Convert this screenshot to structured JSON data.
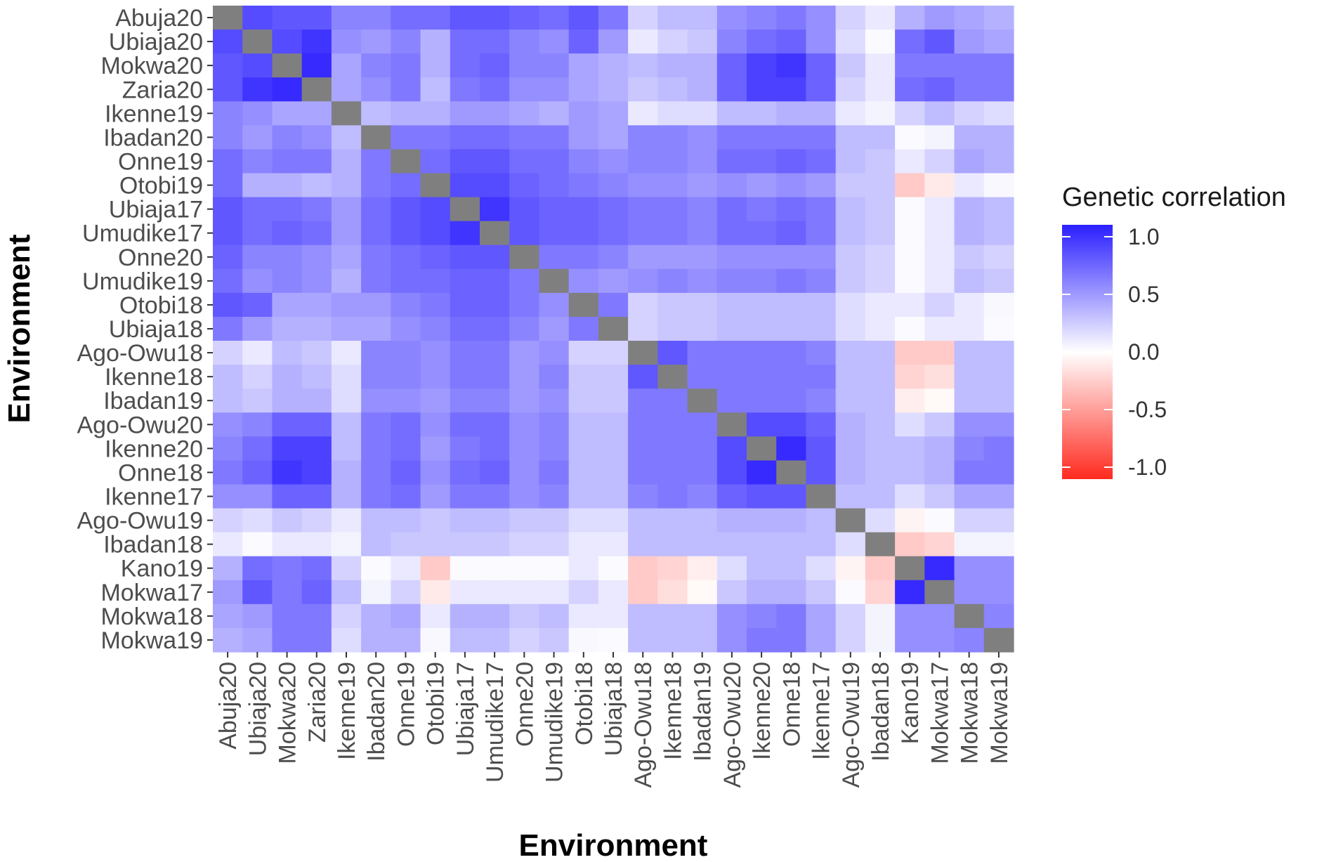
{
  "chart_data": {
    "type": "heatmap",
    "title": "",
    "xlabel": "Environment",
    "ylabel": "Environment",
    "categories": [
      "Abuja20",
      "Ubiaja20",
      "Mokwa20",
      "Zaria20",
      "Ikenne19",
      "Ibadan20",
      "Onne19",
      "Otobi19",
      "Ubiaja17",
      "Umudike17",
      "Onne20",
      "Umudike19",
      "Otobi18",
      "Ubiaja18",
      "Ago-Owu18",
      "Ikenne18",
      "Ibadan19",
      "Ago-Owu20",
      "Ikenne20",
      "Onne18",
      "Ikenne17",
      "Ago-Owu19",
      "Ibadan18",
      "Kano19",
      "Mokwa17",
      "Mokwa18",
      "Mokwa19"
    ],
    "values": [
      [
        null,
        0.8,
        0.75,
        0.75,
        0.55,
        0.55,
        0.65,
        0.65,
        0.75,
        0.75,
        0.7,
        0.65,
        0.75,
        0.6,
        0.2,
        0.3,
        0.3,
        0.5,
        0.55,
        0.6,
        0.5,
        0.2,
        0.1,
        0.35,
        0.45,
        0.4,
        0.35
      ],
      [
        0.8,
        null,
        0.8,
        0.9,
        0.5,
        0.45,
        0.55,
        0.35,
        0.65,
        0.65,
        0.55,
        0.5,
        0.7,
        0.45,
        0.1,
        0.2,
        0.25,
        0.55,
        0.65,
        0.7,
        0.5,
        0.15,
        0.02,
        0.65,
        0.75,
        0.45,
        0.4
      ],
      [
        0.75,
        0.8,
        null,
        0.95,
        0.4,
        0.55,
        0.6,
        0.35,
        0.65,
        0.7,
        0.55,
        0.55,
        0.4,
        0.35,
        0.3,
        0.35,
        0.35,
        0.7,
        0.85,
        0.9,
        0.7,
        0.25,
        0.1,
        0.6,
        0.6,
        0.6,
        0.6
      ],
      [
        0.75,
        0.9,
        0.95,
        null,
        0.4,
        0.5,
        0.6,
        0.3,
        0.6,
        0.65,
        0.5,
        0.5,
        0.4,
        0.35,
        0.25,
        0.3,
        0.35,
        0.7,
        0.85,
        0.85,
        0.7,
        0.2,
        0.1,
        0.65,
        0.7,
        0.6,
        0.6
      ],
      [
        0.55,
        0.5,
        0.4,
        0.4,
        null,
        0.3,
        0.35,
        0.35,
        0.45,
        0.45,
        0.4,
        0.35,
        0.45,
        0.4,
        0.1,
        0.15,
        0.15,
        0.3,
        0.3,
        0.35,
        0.35,
        0.1,
        0.05,
        0.2,
        0.3,
        0.2,
        0.15
      ],
      [
        0.55,
        0.45,
        0.55,
        0.5,
        0.3,
        null,
        0.6,
        0.6,
        0.65,
        0.65,
        0.6,
        0.6,
        0.45,
        0.4,
        0.55,
        0.55,
        0.5,
        0.6,
        0.6,
        0.6,
        0.6,
        0.3,
        0.3,
        0.02,
        0.05,
        0.35,
        0.35
      ],
      [
        0.65,
        0.55,
        0.6,
        0.6,
        0.35,
        0.6,
        null,
        0.65,
        0.75,
        0.75,
        0.65,
        0.65,
        0.55,
        0.5,
        0.55,
        0.55,
        0.5,
        0.65,
        0.65,
        0.7,
        0.65,
        0.3,
        0.25,
        0.1,
        0.2,
        0.4,
        0.35
      ],
      [
        0.65,
        0.35,
        0.35,
        0.3,
        0.35,
        0.6,
        0.65,
        null,
        0.8,
        0.8,
        0.7,
        0.65,
        0.6,
        0.55,
        0.5,
        0.5,
        0.45,
        0.5,
        0.45,
        0.5,
        0.45,
        0.25,
        0.25,
        -0.25,
        -0.1,
        0.1,
        0.03
      ],
      [
        0.75,
        0.65,
        0.65,
        0.6,
        0.45,
        0.65,
        0.75,
        0.8,
        null,
        0.9,
        0.75,
        0.7,
        0.7,
        0.65,
        0.6,
        0.6,
        0.55,
        0.65,
        0.6,
        0.65,
        0.6,
        0.3,
        0.25,
        0.02,
        0.1,
        0.35,
        0.3
      ],
      [
        0.75,
        0.65,
        0.7,
        0.65,
        0.45,
        0.65,
        0.75,
        0.8,
        0.9,
        null,
        0.75,
        0.7,
        0.7,
        0.65,
        0.6,
        0.6,
        0.55,
        0.65,
        0.65,
        0.7,
        0.6,
        0.3,
        0.25,
        0.02,
        0.1,
        0.35,
        0.3
      ],
      [
        0.7,
        0.55,
        0.55,
        0.5,
        0.4,
        0.6,
        0.65,
        0.7,
        0.75,
        0.75,
        null,
        0.6,
        0.6,
        0.55,
        0.45,
        0.45,
        0.45,
        0.5,
        0.5,
        0.5,
        0.5,
        0.25,
        0.2,
        0.02,
        0.1,
        0.25,
        0.2
      ],
      [
        0.65,
        0.5,
        0.55,
        0.5,
        0.35,
        0.6,
        0.65,
        0.65,
        0.7,
        0.7,
        0.6,
        null,
        0.5,
        0.45,
        0.5,
        0.55,
        0.5,
        0.55,
        0.55,
        0.6,
        0.55,
        0.25,
        0.2,
        0.02,
        0.1,
        0.3,
        0.25
      ],
      [
        0.75,
        0.7,
        0.4,
        0.4,
        0.45,
        0.45,
        0.55,
        0.6,
        0.7,
        0.7,
        0.6,
        0.5,
        null,
        0.6,
        0.2,
        0.25,
        0.25,
        0.3,
        0.3,
        0.3,
        0.3,
        0.15,
        0.1,
        0.1,
        0.2,
        0.1,
        0.03
      ],
      [
        0.6,
        0.45,
        0.35,
        0.35,
        0.4,
        0.4,
        0.5,
        0.55,
        0.65,
        0.65,
        0.55,
        0.45,
        0.6,
        null,
        0.2,
        0.25,
        0.25,
        0.3,
        0.3,
        0.3,
        0.3,
        0.15,
        0.1,
        0.02,
        0.1,
        0.1,
        0.02
      ],
      [
        0.2,
        0.1,
        0.3,
        0.25,
        0.1,
        0.55,
        0.55,
        0.5,
        0.6,
        0.6,
        0.45,
        0.5,
        0.2,
        0.2,
        null,
        0.75,
        0.6,
        0.6,
        0.6,
        0.6,
        0.55,
        0.3,
        0.3,
        -0.25,
        -0.25,
        0.3,
        0.3
      ],
      [
        0.3,
        0.2,
        0.35,
        0.3,
        0.15,
        0.55,
        0.55,
        0.5,
        0.6,
        0.6,
        0.45,
        0.55,
        0.25,
        0.25,
        0.75,
        null,
        0.6,
        0.6,
        0.6,
        0.6,
        0.6,
        0.3,
        0.3,
        -0.2,
        -0.15,
        0.3,
        0.3
      ],
      [
        0.3,
        0.25,
        0.35,
        0.35,
        0.15,
        0.5,
        0.5,
        0.45,
        0.55,
        0.55,
        0.45,
        0.5,
        0.25,
        0.25,
        0.6,
        0.6,
        null,
        0.6,
        0.6,
        0.6,
        0.55,
        0.3,
        0.3,
        -0.08,
        -0.03,
        0.3,
        0.3
      ],
      [
        0.5,
        0.55,
        0.7,
        0.7,
        0.3,
        0.6,
        0.65,
        0.5,
        0.65,
        0.65,
        0.5,
        0.55,
        0.3,
        0.3,
        0.6,
        0.6,
        0.6,
        null,
        0.8,
        0.8,
        0.7,
        0.35,
        0.3,
        0.15,
        0.25,
        0.5,
        0.5
      ],
      [
        0.55,
        0.65,
        0.85,
        0.85,
        0.3,
        0.6,
        0.65,
        0.45,
        0.6,
        0.65,
        0.5,
        0.55,
        0.3,
        0.3,
        0.6,
        0.6,
        0.6,
        0.8,
        null,
        0.95,
        0.75,
        0.35,
        0.3,
        0.3,
        0.35,
        0.55,
        0.6
      ],
      [
        0.6,
        0.7,
        0.9,
        0.85,
        0.35,
        0.6,
        0.7,
        0.5,
        0.65,
        0.7,
        0.5,
        0.6,
        0.3,
        0.3,
        0.6,
        0.6,
        0.6,
        0.8,
        0.95,
        null,
        0.75,
        0.35,
        0.3,
        0.3,
        0.35,
        0.6,
        0.6
      ],
      [
        0.5,
        0.5,
        0.7,
        0.7,
        0.35,
        0.6,
        0.65,
        0.45,
        0.6,
        0.6,
        0.5,
        0.55,
        0.3,
        0.3,
        0.55,
        0.6,
        0.55,
        0.7,
        0.75,
        0.75,
        null,
        0.3,
        0.3,
        0.15,
        0.25,
        0.4,
        0.4
      ],
      [
        0.2,
        0.15,
        0.25,
        0.2,
        0.1,
        0.3,
        0.3,
        0.25,
        0.3,
        0.3,
        0.25,
        0.25,
        0.15,
        0.15,
        0.3,
        0.3,
        0.3,
        0.35,
        0.35,
        0.35,
        0.3,
        null,
        0.15,
        -0.05,
        0.02,
        0.2,
        0.2
      ],
      [
        0.1,
        0.02,
        0.1,
        0.1,
        0.05,
        0.3,
        0.25,
        0.25,
        0.25,
        0.25,
        0.2,
        0.2,
        0.1,
        0.1,
        0.3,
        0.3,
        0.3,
        0.3,
        0.3,
        0.3,
        0.3,
        0.15,
        null,
        -0.25,
        -0.2,
        0.05,
        0.05
      ],
      [
        0.35,
        0.65,
        0.6,
        0.65,
        0.2,
        0.02,
        0.1,
        -0.25,
        0.02,
        0.02,
        0.02,
        0.02,
        0.1,
        0.02,
        -0.25,
        -0.2,
        -0.08,
        0.15,
        0.3,
        0.3,
        0.15,
        -0.05,
        -0.25,
        null,
        0.95,
        0.5,
        0.5
      ],
      [
        0.45,
        0.75,
        0.6,
        0.7,
        0.3,
        0.05,
        0.2,
        -0.1,
        0.1,
        0.1,
        0.1,
        0.1,
        0.2,
        0.1,
        -0.25,
        -0.15,
        -0.03,
        0.25,
        0.35,
        0.35,
        0.25,
        0.02,
        -0.2,
        0.95,
        null,
        0.5,
        0.5
      ],
      [
        0.4,
        0.45,
        0.6,
        0.6,
        0.2,
        0.35,
        0.4,
        0.1,
        0.35,
        0.35,
        0.25,
        0.3,
        0.1,
        0.1,
        0.3,
        0.3,
        0.3,
        0.5,
        0.55,
        0.6,
        0.4,
        0.2,
        0.05,
        0.5,
        0.5,
        null,
        0.55
      ],
      [
        0.35,
        0.4,
        0.6,
        0.6,
        0.15,
        0.35,
        0.35,
        0.03,
        0.3,
        0.3,
        0.2,
        0.25,
        0.03,
        0.02,
        0.3,
        0.3,
        0.3,
        0.5,
        0.6,
        0.6,
        0.4,
        0.2,
        0.05,
        0.5,
        0.5,
        0.55,
        null
      ]
    ],
    "legend": {
      "title": "Genetic correlation",
      "range": [
        -1.0,
        1.0
      ],
      "ticks": [
        {
          "value": 1.0,
          "label": "1.0"
        },
        {
          "value": 0.5,
          "label": "0.5"
        },
        {
          "value": 0.0,
          "label": "0.0"
        },
        {
          "value": -0.5,
          "label": "-0.5"
        },
        {
          "value": -1.0,
          "label": "-1.0"
        }
      ],
      "position": "right"
    },
    "colors": {
      "low": "#ff2a1f",
      "mid": "#ffffff",
      "high": "#2b1fff",
      "diagonal": "#7f7f7f",
      "panel": "#ebebeb"
    },
    "grid": false
  }
}
